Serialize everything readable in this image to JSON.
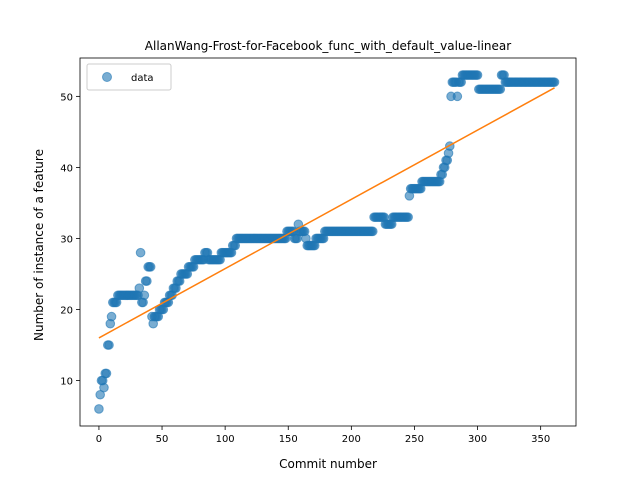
{
  "chart_data": {
    "type": "scatter",
    "title": "AllanWang-Frost-for-Facebook_func_with_default_value-linear",
    "xlabel": "Commit number",
    "ylabel": "Number of instance of a feature",
    "xlim": [
      -15,
      378
    ],
    "ylim": [
      3.6,
      55.4
    ],
    "xticks": [
      0,
      50,
      100,
      150,
      200,
      250,
      300,
      350
    ],
    "yticks": [
      10,
      20,
      30,
      40,
      50
    ],
    "grid": false,
    "legend": {
      "placement": "top-left",
      "entries": [
        "data"
      ]
    },
    "series": [
      {
        "name": "data",
        "kind": "scatter",
        "color": "#1f77b4",
        "runs": [
          [
            0,
            0,
            6
          ],
          [
            1,
            1,
            8
          ],
          [
            2,
            2,
            10
          ],
          [
            3,
            3,
            10
          ],
          [
            4,
            4,
            9
          ],
          [
            5,
            6,
            11
          ],
          [
            7,
            8,
            15
          ],
          [
            9,
            9,
            18
          ],
          [
            10,
            10,
            19
          ],
          [
            11,
            11,
            21
          ],
          [
            12,
            14,
            21
          ],
          [
            15,
            31,
            22
          ],
          [
            32,
            32,
            23
          ],
          [
            33,
            33,
            28
          ],
          [
            34,
            35,
            21
          ],
          [
            36,
            36,
            22
          ],
          [
            37,
            38,
            24
          ],
          [
            39,
            41,
            26
          ],
          [
            42,
            42,
            19
          ],
          [
            43,
            43,
            18
          ],
          [
            44,
            47,
            19
          ],
          [
            48,
            51,
            20
          ],
          [
            52,
            55,
            21
          ],
          [
            56,
            58,
            22
          ],
          [
            59,
            61,
            23
          ],
          [
            62,
            64,
            24
          ],
          [
            65,
            70,
            25
          ],
          [
            71,
            75,
            26
          ],
          [
            76,
            83,
            27
          ],
          [
            84,
            86,
            28
          ],
          [
            87,
            96,
            27
          ],
          [
            97,
            105,
            28
          ],
          [
            106,
            108,
            29
          ],
          [
            109,
            148,
            30
          ],
          [
            149,
            154,
            31
          ],
          [
            155,
            157,
            30
          ],
          [
            158,
            158,
            32
          ],
          [
            159,
            163,
            31
          ],
          [
            164,
            164,
            30
          ],
          [
            165,
            171,
            29
          ],
          [
            172,
            178,
            30
          ],
          [
            179,
            217,
            31
          ],
          [
            218,
            218,
            33
          ],
          [
            219,
            226,
            33
          ],
          [
            227,
            232,
            32
          ],
          [
            233,
            238,
            33
          ],
          [
            239,
            245,
            33
          ],
          [
            246,
            246,
            36
          ],
          [
            247,
            255,
            37
          ],
          [
            256,
            270,
            38
          ],
          [
            271,
            272,
            39
          ],
          [
            273,
            274,
            40
          ],
          [
            275,
            276,
            41
          ],
          [
            277,
            277,
            42
          ],
          [
            278,
            278,
            43
          ],
          [
            279,
            279,
            50
          ],
          [
            280,
            283,
            52
          ],
          [
            284,
            284,
            50
          ],
          [
            285,
            287,
            52
          ],
          [
            288,
            300,
            53
          ],
          [
            301,
            318,
            51
          ],
          [
            319,
            321,
            53
          ],
          [
            322,
            361,
            52
          ]
        ]
      },
      {
        "name": "",
        "kind": "line",
        "color": "#ff7f0e",
        "x": [
          0,
          361
        ],
        "y": [
          16.0,
          51.2
        ]
      }
    ]
  }
}
